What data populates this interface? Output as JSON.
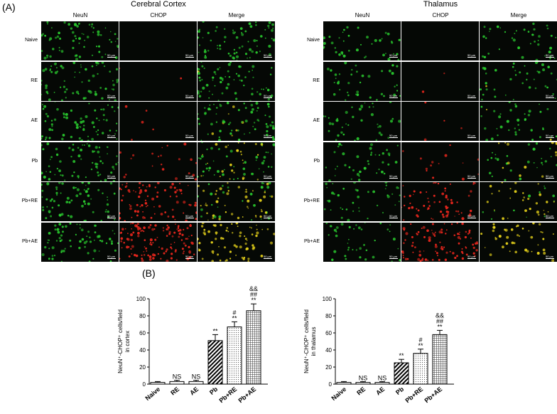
{
  "panel_a_label": "(A)",
  "panel_b_label": "(B)",
  "sections": [
    {
      "title": "Cerebral Cortex"
    },
    {
      "title": "Thalamus"
    }
  ],
  "columns": [
    "NeuN",
    "CHOP",
    "Merge"
  ],
  "rows": [
    "Naive",
    "RE",
    "AE",
    "Pb",
    "Pb+RE",
    "Pb+AE"
  ],
  "scale_bar": "50 μm",
  "colors": {
    "neun": "#29c82e",
    "chop": "#e0251c",
    "merge": "#e6d21a"
  },
  "chop_density": [
    0,
    0.02,
    0.1,
    0.3,
    0.65,
    1.0
  ],
  "chart_data": [
    {
      "type": "bar",
      "categories": [
        "Naive",
        "RE",
        "AE",
        "Pb",
        "Pb+RE",
        "Pb+AE"
      ],
      "values": [
        2,
        3,
        3,
        51,
        67,
        86
      ],
      "errors": [
        1,
        1.5,
        1.5,
        7,
        6,
        8
      ],
      "annotations": [
        "",
        "NS",
        "NS",
        "**",
        "#\n**",
        "&&\n##\n**"
      ],
      "ylabel": "NeuN⁺-CHOP⁺ cells/field\nin cortex",
      "ylim": [
        0,
        100
      ],
      "yticks": [
        0,
        20,
        40,
        60,
        80,
        100
      ],
      "patterns": [
        "solid",
        "solid",
        "solid",
        "diagonal",
        "dots",
        "grid"
      ]
    },
    {
      "type": "bar",
      "categories": [
        "Naive",
        "RE",
        "AE",
        "Pb",
        "Pb+RE",
        "Pb+AE"
      ],
      "values": [
        2,
        2,
        2,
        25,
        36,
        58
      ],
      "errors": [
        1,
        1,
        1,
        4,
        5,
        5
      ],
      "annotations": [
        "",
        "NS",
        "NS",
        "**",
        "#\n**",
        "&&\n##\n**"
      ],
      "ylabel": "NeuN⁺-CHOP⁺ cells/field\nin thalamus",
      "ylim": [
        0,
        100
      ],
      "yticks": [
        0,
        20,
        40,
        60,
        80,
        100
      ],
      "patterns": [
        "solid",
        "solid",
        "solid",
        "diagonal",
        "dots",
        "grid"
      ]
    }
  ]
}
